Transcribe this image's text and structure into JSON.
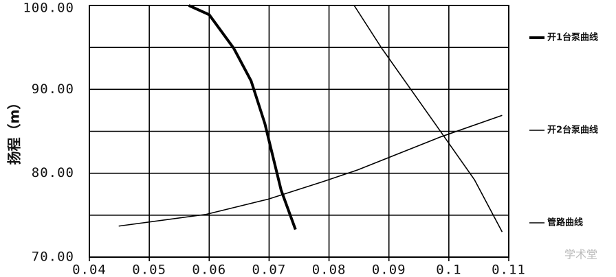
{
  "chart_data": {
    "type": "line",
    "ylabel": "扬程（m）",
    "xlim": [
      0.04,
      0.11
    ],
    "xticks": [
      0.04,
      0.05,
      0.06,
      0.07,
      0.08,
      0.09,
      0.1,
      0.11
    ],
    "ylim": [
      70,
      100
    ],
    "yticks": [
      {
        "value": 70,
        "label": "70.00"
      },
      {
        "value": 80,
        "label": "80.00"
      },
      {
        "value": 90,
        "label": "90.00"
      },
      {
        "value": 100,
        "label": "100.00"
      }
    ],
    "minor_yticks": [
      75,
      85,
      95
    ],
    "grid": true,
    "legend": "right",
    "series": [
      {
        "name": "开1台泵曲线",
        "color": "#000000",
        "line_width": 4,
        "x": [
          0.0566,
          0.06,
          0.0641,
          0.067,
          0.0693,
          0.072,
          0.0744
        ],
        "values": [
          100,
          98.9,
          94.9,
          91,
          85.9,
          78,
          73.3
        ]
      },
      {
        "name": "开2台泵曲线",
        "color": "#000000",
        "line_width": 1.6,
        "x": [
          0.0842,
          0.0888,
          0.0985,
          0.1043,
          0.1089
        ],
        "values": [
          100,
          94.9,
          85.1,
          79.2,
          73
        ]
      },
      {
        "name": "管路曲线",
        "color": "#000000",
        "line_width": 1.6,
        "x": [
          0.0449,
          0.0595,
          0.0698,
          0.079,
          0.0848,
          0.0985,
          0.1089
        ],
        "values": [
          73.7,
          75.1,
          76.9,
          79,
          80.4,
          84.3,
          86.9
        ]
      }
    ],
    "watermark": "学术堂"
  }
}
